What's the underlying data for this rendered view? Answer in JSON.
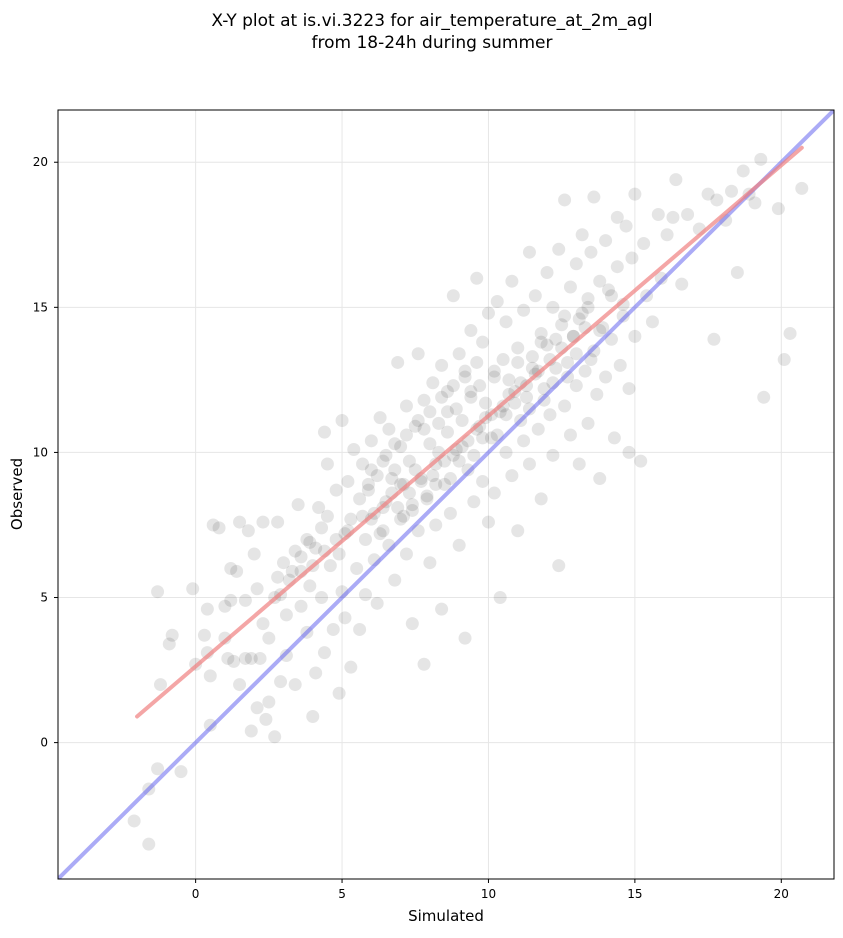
{
  "chart_data": {
    "type": "scatter",
    "title_line1": "X-Y plot at is.vi.3223 for air_temperature_at_2m_agl",
    "title_line2": "from 18-24h during summer",
    "xlabel": "Simulated",
    "ylabel": "Observed",
    "xlim": [
      -4.7,
      21.8
    ],
    "ylim": [
      -4.7,
      21.8
    ],
    "xticks": [
      0,
      5,
      10,
      15,
      20
    ],
    "yticks": [
      0,
      5,
      10,
      15,
      20
    ],
    "grid": true,
    "colors": {
      "points": "#000000",
      "fit_line": "#f08080",
      "identity_line": "#6666ee"
    },
    "fit_line": {
      "x": [
        -2.0,
        20.7
      ],
      "y": [
        0.9,
        20.5
      ]
    },
    "identity_line": {
      "x": [
        -4.7,
        21.8
      ],
      "y": [
        -4.7,
        21.8
      ]
    },
    "points": [
      [
        -2.1,
        -2.7
      ],
      [
        -1.6,
        -3.5
      ],
      [
        -1.3,
        -0.9
      ],
      [
        -1.6,
        -1.6
      ],
      [
        -0.5,
        -1.0
      ],
      [
        -1.3,
        5.2
      ],
      [
        -0.9,
        3.4
      ],
      [
        -0.8,
        3.7
      ],
      [
        -1.2,
        2.0
      ],
      [
        -0.1,
        5.3
      ],
      [
        0.0,
        2.7
      ],
      [
        0.3,
        3.7
      ],
      [
        0.4,
        3.1
      ],
      [
        0.4,
        4.6
      ],
      [
        0.5,
        2.3
      ],
      [
        0.5,
        0.6
      ],
      [
        0.6,
        7.5
      ],
      [
        0.8,
        7.4
      ],
      [
        1.0,
        4.7
      ],
      [
        1.0,
        3.6
      ],
      [
        1.1,
        2.9
      ],
      [
        1.2,
        6.0
      ],
      [
        1.2,
        4.9
      ],
      [
        1.3,
        2.8
      ],
      [
        1.4,
        5.9
      ],
      [
        1.5,
        2.0
      ],
      [
        1.5,
        7.6
      ],
      [
        1.7,
        4.9
      ],
      [
        1.7,
        2.9
      ],
      [
        1.8,
        7.3
      ],
      [
        1.9,
        0.4
      ],
      [
        1.9,
        2.9
      ],
      [
        2.0,
        6.5
      ],
      [
        2.1,
        5.3
      ],
      [
        2.1,
        1.2
      ],
      [
        2.2,
        2.9
      ],
      [
        2.3,
        7.6
      ],
      [
        2.3,
        4.1
      ],
      [
        2.4,
        0.8
      ],
      [
        2.5,
        1.4
      ],
      [
        2.5,
        3.6
      ],
      [
        2.7,
        5.0
      ],
      [
        2.7,
        0.2
      ],
      [
        2.8,
        7.6
      ],
      [
        2.8,
        5.7
      ],
      [
        2.9,
        2.1
      ],
      [
        3.0,
        6.2
      ],
      [
        3.1,
        4.4
      ],
      [
        3.1,
        3.0
      ],
      [
        3.3,
        5.9
      ],
      [
        3.4,
        2.0
      ],
      [
        3.5,
        8.2
      ],
      [
        3.6,
        6.4
      ],
      [
        3.6,
        4.7
      ],
      [
        3.8,
        3.8
      ],
      [
        3.8,
        7.0
      ],
      [
        3.9,
        5.4
      ],
      [
        4.0,
        0.9
      ],
      [
        4.1,
        6.7
      ],
      [
        4.1,
        2.4
      ],
      [
        4.2,
        8.1
      ],
      [
        4.3,
        5.0
      ],
      [
        4.4,
        3.1
      ],
      [
        4.4,
        10.7
      ],
      [
        4.5,
        7.8
      ],
      [
        4.5,
        9.6
      ],
      [
        4.6,
        6.1
      ],
      [
        4.7,
        3.9
      ],
      [
        4.8,
        8.7
      ],
      [
        4.9,
        1.7
      ],
      [
        4.9,
        6.5
      ],
      [
        5.0,
        5.2
      ],
      [
        5.0,
        11.1
      ],
      [
        5.1,
        7.2
      ],
      [
        5.1,
        4.3
      ],
      [
        5.2,
        9.0
      ],
      [
        5.3,
        2.6
      ],
      [
        5.3,
        7.7
      ],
      [
        5.4,
        10.1
      ],
      [
        5.5,
        6.0
      ],
      [
        5.6,
        8.4
      ],
      [
        5.6,
        3.9
      ],
      [
        5.7,
        9.6
      ],
      [
        5.8,
        7.0
      ],
      [
        5.8,
        5.1
      ],
      [
        5.9,
        8.9
      ],
      [
        6.0,
        7.7
      ],
      [
        6.0,
        10.4
      ],
      [
        6.1,
        6.3
      ],
      [
        6.2,
        9.2
      ],
      [
        6.2,
        4.8
      ],
      [
        6.3,
        11.2
      ],
      [
        6.4,
        8.1
      ],
      [
        6.4,
        7.3
      ],
      [
        6.5,
        9.9
      ],
      [
        6.6,
        6.8
      ],
      [
        6.6,
        10.8
      ],
      [
        6.7,
        8.6
      ],
      [
        6.8,
        5.6
      ],
      [
        6.8,
        9.4
      ],
      [
        6.9,
        13.1
      ],
      [
        7.0,
        7.7
      ],
      [
        7.0,
        10.2
      ],
      [
        7.1,
        8.9
      ],
      [
        7.2,
        6.5
      ],
      [
        7.2,
        11.6
      ],
      [
        7.3,
        9.7
      ],
      [
        7.4,
        4.1
      ],
      [
        7.4,
        8.2
      ],
      [
        7.5,
        10.9
      ],
      [
        7.6,
        7.3
      ],
      [
        7.6,
        13.4
      ],
      [
        7.7,
        9.1
      ],
      [
        7.8,
        11.8
      ],
      [
        7.8,
        2.7
      ],
      [
        7.9,
        8.5
      ],
      [
        8.0,
        10.3
      ],
      [
        8.0,
        6.2
      ],
      [
        8.1,
        12.4
      ],
      [
        8.2,
        9.6
      ],
      [
        8.2,
        7.5
      ],
      [
        8.3,
        11.0
      ],
      [
        8.4,
        4.6
      ],
      [
        8.4,
        13.0
      ],
      [
        8.5,
        8.9
      ],
      [
        8.6,
        10.7
      ],
      [
        8.6,
        12.1
      ],
      [
        8.7,
        7.9
      ],
      [
        8.8,
        9.9
      ],
      [
        8.8,
        15.4
      ],
      [
        8.9,
        11.5
      ],
      [
        9.0,
        6.8
      ],
      [
        9.0,
        13.4
      ],
      [
        9.1,
        10.2
      ],
      [
        9.2,
        3.6
      ],
      [
        9.2,
        12.6
      ],
      [
        9.3,
        9.4
      ],
      [
        9.4,
        11.9
      ],
      [
        9.4,
        14.2
      ],
      [
        9.5,
        8.3
      ],
      [
        9.6,
        10.8
      ],
      [
        9.6,
        16.0
      ],
      [
        9.7,
        12.3
      ],
      [
        9.8,
        9.0
      ],
      [
        9.8,
        13.8
      ],
      [
        9.9,
        11.2
      ],
      [
        10.0,
        7.6
      ],
      [
        10.0,
        14.8
      ],
      [
        10.1,
        10.5
      ],
      [
        10.2,
        12.8
      ],
      [
        10.2,
        8.6
      ],
      [
        10.3,
        15.2
      ],
      [
        10.4,
        11.4
      ],
      [
        10.4,
        5.0
      ],
      [
        10.5,
        13.2
      ],
      [
        10.6,
        10.0
      ],
      [
        10.6,
        14.5
      ],
      [
        10.7,
        12.0
      ],
      [
        10.8,
        9.2
      ],
      [
        10.8,
        15.9
      ],
      [
        10.9,
        11.7
      ],
      [
        11.0,
        13.6
      ],
      [
        11.0,
        7.3
      ],
      [
        11.1,
        12.4
      ],
      [
        11.2,
        10.4
      ],
      [
        11.2,
        14.9
      ],
      [
        11.3,
        11.9
      ],
      [
        11.4,
        16.9
      ],
      [
        11.4,
        9.6
      ],
      [
        11.5,
        13.3
      ],
      [
        11.6,
        12.7
      ],
      [
        11.6,
        15.4
      ],
      [
        11.7,
        10.8
      ],
      [
        11.8,
        14.1
      ],
      [
        11.8,
        8.4
      ],
      [
        11.9,
        12.2
      ],
      [
        12.0,
        16.2
      ],
      [
        12.0,
        13.7
      ],
      [
        12.1,
        11.3
      ],
      [
        12.2,
        15.0
      ],
      [
        12.2,
        9.9
      ],
      [
        12.3,
        12.9
      ],
      [
        12.4,
        17.0
      ],
      [
        12.4,
        6.1
      ],
      [
        12.5,
        14.4
      ],
      [
        12.6,
        11.6
      ],
      [
        12.6,
        18.7
      ],
      [
        12.7,
        13.1
      ],
      [
        12.8,
        15.7
      ],
      [
        12.8,
        10.6
      ],
      [
        12.9,
        14.0
      ],
      [
        13.0,
        12.3
      ],
      [
        13.0,
        16.5
      ],
      [
        13.1,
        9.6
      ],
      [
        13.2,
        14.8
      ],
      [
        13.2,
        17.5
      ],
      [
        13.3,
        12.8
      ],
      [
        13.4,
        15.3
      ],
      [
        13.4,
        11.0
      ],
      [
        13.5,
        16.9
      ],
      [
        13.6,
        13.5
      ],
      [
        13.6,
        18.8
      ],
      [
        13.7,
        12.0
      ],
      [
        13.8,
        15.9
      ],
      [
        13.8,
        9.1
      ],
      [
        13.9,
        14.3
      ],
      [
        14.0,
        17.3
      ],
      [
        14.0,
        12.6
      ],
      [
        14.1,
        15.6
      ],
      [
        14.2,
        13.9
      ],
      [
        14.3,
        10.5
      ],
      [
        14.4,
        16.4
      ],
      [
        14.4,
        18.1
      ],
      [
        14.5,
        13.0
      ],
      [
        14.6,
        15.1
      ],
      [
        14.7,
        17.8
      ],
      [
        14.8,
        12.2
      ],
      [
        14.8,
        10.0
      ],
      [
        14.9,
        16.7
      ],
      [
        15.0,
        18.9
      ],
      [
        15.0,
        14.0
      ],
      [
        15.2,
        9.7
      ],
      [
        15.3,
        17.2
      ],
      [
        15.4,
        15.4
      ],
      [
        15.6,
        14.5
      ],
      [
        15.8,
        18.2
      ],
      [
        15.9,
        16.0
      ],
      [
        16.1,
        17.5
      ],
      [
        16.3,
        18.1
      ],
      [
        16.4,
        19.4
      ],
      [
        16.6,
        15.8
      ],
      [
        16.8,
        18.2
      ],
      [
        17.2,
        17.7
      ],
      [
        17.5,
        18.9
      ],
      [
        17.7,
        13.9
      ],
      [
        17.8,
        18.7
      ],
      [
        18.1,
        18.0
      ],
      [
        18.3,
        19.0
      ],
      [
        18.5,
        16.2
      ],
      [
        18.7,
        19.7
      ],
      [
        18.9,
        18.9
      ],
      [
        19.1,
        18.6
      ],
      [
        19.3,
        20.1
      ],
      [
        19.4,
        11.9
      ],
      [
        19.9,
        18.4
      ],
      [
        20.1,
        13.2
      ],
      [
        20.3,
        14.1
      ],
      [
        20.7,
        19.1
      ],
      [
        5.7,
        7.8
      ],
      [
        6.1,
        7.9
      ],
      [
        6.5,
        8.3
      ],
      [
        6.9,
        8.1
      ],
      [
        7.3,
        8.6
      ],
      [
        7.7,
        9.0
      ],
      [
        8.1,
        9.2
      ],
      [
        8.5,
        9.7
      ],
      [
        8.9,
        10.1
      ],
      [
        9.3,
        10.4
      ],
      [
        9.7,
        10.9
      ],
      [
        10.1,
        11.3
      ],
      [
        10.5,
        11.6
      ],
      [
        10.9,
        12.1
      ],
      [
        11.3,
        12.3
      ],
      [
        11.7,
        12.8
      ],
      [
        12.1,
        13.2
      ],
      [
        12.5,
        13.6
      ],
      [
        12.9,
        14.0
      ],
      [
        13.3,
        14.3
      ],
      [
        5.9,
        8.7
      ],
      [
        6.3,
        7.2
      ],
      [
        6.7,
        9.1
      ],
      [
        7.1,
        7.8
      ],
      [
        7.5,
        9.4
      ],
      [
        7.9,
        8.4
      ],
      [
        8.3,
        10.0
      ],
      [
        8.7,
        9.1
      ],
      [
        9.1,
        11.1
      ],
      [
        9.5,
        9.9
      ],
      [
        9.9,
        11.7
      ],
      [
        10.3,
        10.6
      ],
      [
        10.7,
        12.5
      ],
      [
        11.1,
        11.1
      ],
      [
        11.5,
        12.9
      ],
      [
        11.9,
        11.8
      ],
      [
        12.3,
        13.9
      ],
      [
        12.7,
        12.6
      ],
      [
        13.1,
        14.6
      ],
      [
        13.5,
        13.2
      ],
      [
        3.2,
        5.6
      ],
      [
        3.6,
        5.9
      ],
      [
        4.0,
        6.1
      ],
      [
        4.4,
        6.6
      ],
      [
        4.8,
        7.0
      ],
      [
        5.2,
        7.3
      ],
      [
        2.9,
        5.1
      ],
      [
        3.4,
        6.6
      ],
      [
        3.9,
        6.9
      ],
      [
        4.3,
        7.4
      ],
      [
        6.0,
        9.4
      ],
      [
        6.4,
        9.7
      ],
      [
        6.8,
        10.3
      ],
      [
        7.2,
        10.6
      ],
      [
        7.6,
        11.1
      ],
      [
        8.0,
        11.4
      ],
      [
        8.4,
        11.9
      ],
      [
        8.8,
        12.3
      ],
      [
        9.2,
        12.8
      ],
      [
        9.6,
        13.1
      ],
      [
        7.0,
        8.9
      ],
      [
        7.4,
        8.0
      ],
      [
        7.8,
        10.8
      ],
      [
        8.2,
        8.9
      ],
      [
        8.6,
        11.4
      ],
      [
        9.0,
        9.7
      ],
      [
        9.4,
        12.1
      ],
      [
        9.8,
        10.5
      ],
      [
        10.2,
        12.6
      ],
      [
        10.6,
        11.3
      ],
      [
        11.0,
        13.1
      ],
      [
        11.4,
        11.5
      ],
      [
        11.8,
        13.8
      ],
      [
        12.2,
        12.4
      ],
      [
        12.6,
        14.7
      ],
      [
        13.0,
        13.4
      ],
      [
        13.4,
        15.0
      ],
      [
        13.8,
        14.2
      ],
      [
        14.2,
        15.4
      ],
      [
        14.6,
        14.7
      ]
    ]
  }
}
